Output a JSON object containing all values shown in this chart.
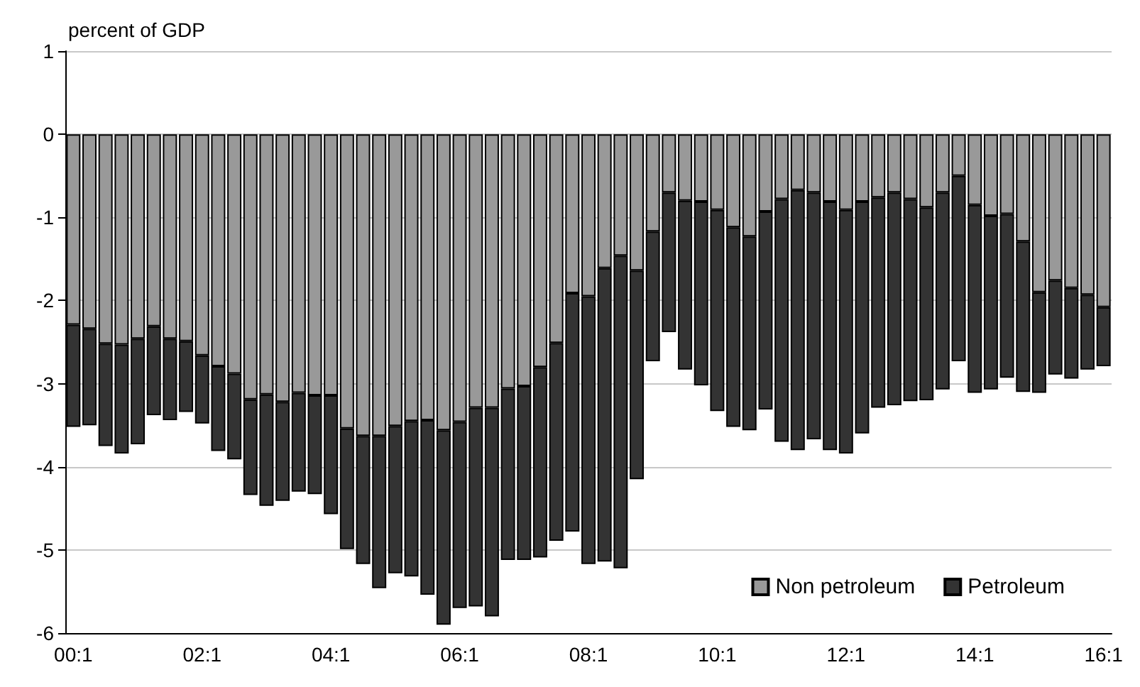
{
  "chart_data": {
    "type": "bar",
    "stacked": true,
    "ylabel": "percent of GDP",
    "categories": [
      "00:1",
      null,
      null,
      null,
      null,
      null,
      null,
      null,
      "02:1",
      null,
      null,
      null,
      null,
      null,
      null,
      null,
      "04:1",
      null,
      null,
      null,
      null,
      null,
      null,
      null,
      "06:1",
      null,
      null,
      null,
      null,
      null,
      null,
      null,
      "08:1",
      null,
      null,
      null,
      null,
      null,
      null,
      null,
      "10:1",
      null,
      null,
      null,
      null,
      null,
      null,
      null,
      "12:1",
      null,
      null,
      null,
      null,
      null,
      null,
      null,
      "14:1",
      null,
      null,
      null,
      null,
      null,
      null,
      null,
      "16:1"
    ],
    "series": [
      {
        "name": "Non petroleum",
        "color": "#999999",
        "values": [
          -2.29,
          -2.34,
          -2.52,
          -2.53,
          -2.46,
          -2.31,
          -2.46,
          -2.49,
          -2.66,
          -2.79,
          -2.88,
          -3.19,
          -3.13,
          -3.22,
          -3.11,
          -3.14,
          -3.14,
          -3.54,
          -3.63,
          -3.63,
          -3.51,
          -3.45,
          -3.44,
          -3.56,
          -3.46,
          -3.29,
          -3.29,
          -3.06,
          -3.03,
          -2.8,
          -2.51,
          -1.91,
          -1.95,
          -1.61,
          -1.46,
          -1.64,
          -1.17,
          -0.7,
          -0.8,
          -0.81,
          -0.91,
          -1.12,
          -1.23,
          -0.93,
          -0.78,
          -0.67,
          -0.7,
          -0.81,
          -0.91,
          -0.81,
          -0.76,
          -0.7,
          -0.78,
          -0.88,
          -0.7,
          -0.5,
          -0.85,
          -0.98,
          -0.96,
          -1.29,
          -1.9,
          -1.76,
          -1.85,
          -1.93,
          -2.08
        ]
      },
      {
        "name": "Petroleum",
        "color": "#333333",
        "values": [
          -1.23,
          -1.16,
          -1.23,
          -1.31,
          -1.27,
          -1.07,
          -0.98,
          -0.85,
          -0.82,
          -1.02,
          -1.03,
          -1.15,
          -1.34,
          -1.19,
          -1.19,
          -1.19,
          -1.43,
          -1.45,
          -1.54,
          -1.83,
          -1.77,
          -1.87,
          -2.1,
          -2.34,
          -2.24,
          -2.39,
          -2.51,
          -2.06,
          -2.09,
          -2.29,
          -2.38,
          -2.87,
          -3.22,
          -3.53,
          -3.76,
          -2.51,
          -1.56,
          -1.68,
          -2.03,
          -2.21,
          -2.42,
          -2.4,
          -2.33,
          -2.38,
          -2.92,
          -3.13,
          -2.97,
          -2.99,
          -2.93,
          -2.79,
          -2.53,
          -2.56,
          -2.43,
          -2.32,
          -2.37,
          -2.23,
          -2.26,
          -2.09,
          -1.97,
          -1.81,
          -1.21,
          -1.13,
          -1.09,
          -0.9,
          -0.71
        ]
      }
    ],
    "ylim": [
      -6,
      1
    ],
    "yticks": [
      -6,
      -5,
      -4,
      -3,
      -2,
      -1,
      0,
      1
    ],
    "grid": "y",
    "legend": "bottom right"
  }
}
